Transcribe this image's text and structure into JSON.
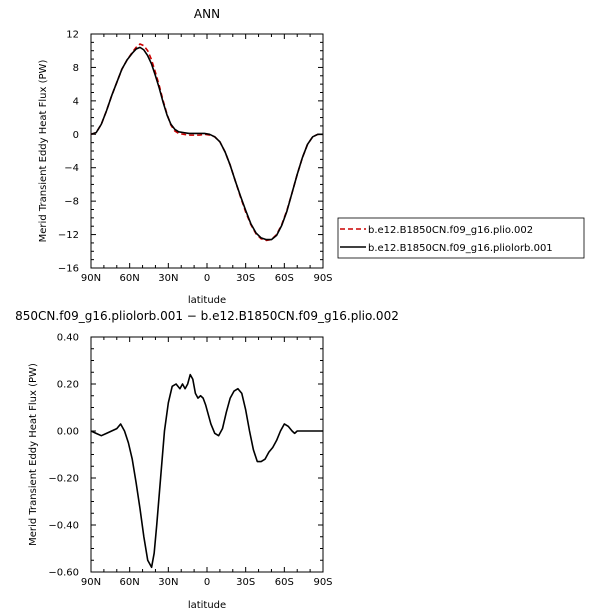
{
  "chart_data": [
    {
      "type": "line",
      "title": "ANN",
      "xlabel": "latitude",
      "ylabel": "Merid Transient Eddy Heat Flux (PW)",
      "xlim": [
        90,
        -90
      ],
      "ylim": [
        -16,
        12
      ],
      "x_ticks": [
        {
          "v": 90,
          "label": "90N"
        },
        {
          "v": 60,
          "label": "60N"
        },
        {
          "v": 30,
          "label": "30N"
        },
        {
          "v": 0,
          "label": "0"
        },
        {
          "v": -30,
          "label": "30S"
        },
        {
          "v": -60,
          "label": "60S"
        },
        {
          "v": -90,
          "label": "90S"
        }
      ],
      "y_ticks": [
        {
          "v": 12,
          "label": "12"
        },
        {
          "v": 8,
          "label": "8"
        },
        {
          "v": 4,
          "label": "4"
        },
        {
          "v": 0,
          "label": "0"
        },
        {
          "v": -4,
          "label": "−4"
        },
        {
          "v": -8,
          "label": "−8"
        },
        {
          "v": -12,
          "label": "−12"
        },
        {
          "v": -16,
          "label": "−16"
        }
      ],
      "series": [
        {
          "name": "b.e12.B1850CN.f09_g16.plio.002",
          "color": "#cc0000",
          "dash": "dashed",
          "x": [
            90,
            86,
            82,
            78,
            74,
            70,
            66,
            62,
            58,
            55,
            52,
            49,
            46,
            43,
            40,
            37,
            34,
            31,
            28,
            25,
            22,
            18,
            14,
            10,
            6,
            2,
            -2,
            -6,
            -10,
            -14,
            -18,
            -22,
            -26,
            -30,
            -34,
            -38,
            -42,
            -46,
            -50,
            -54,
            -58,
            -62,
            -66,
            -70,
            -74,
            -78,
            -82,
            -86,
            -90
          ],
          "y": [
            0,
            0.2,
            1.2,
            2.8,
            4.6,
            6.2,
            7.8,
            8.9,
            9.8,
            10.4,
            10.8,
            10.6,
            10.0,
            8.9,
            7.4,
            5.8,
            4.0,
            2.4,
            1.1,
            0.4,
            0.1,
            0.0,
            -0.1,
            -0.1,
            -0.1,
            0.0,
            -0.1,
            -0.3,
            -0.9,
            -2.1,
            -3.7,
            -5.6,
            -7.5,
            -9.3,
            -10.8,
            -11.9,
            -12.5,
            -12.7,
            -12.6,
            -12.0,
            -10.8,
            -9.1,
            -7.0,
            -4.8,
            -2.8,
            -1.2,
            -0.3,
            0.0,
            0.0
          ]
        },
        {
          "name": "b.e12.B1850CN.f09_g16.pliolorb.001",
          "color": "#000000",
          "dash": "solid",
          "x": [
            90,
            86,
            82,
            78,
            74,
            70,
            66,
            62,
            58,
            55,
            52,
            49,
            46,
            43,
            40,
            37,
            34,
            31,
            28,
            25,
            22,
            18,
            14,
            10,
            6,
            2,
            -2,
            -6,
            -10,
            -14,
            -18,
            -22,
            -26,
            -30,
            -34,
            -38,
            -42,
            -46,
            -50,
            -54,
            -58,
            -62,
            -66,
            -70,
            -74,
            -78,
            -82,
            -86,
            -90
          ],
          "y": [
            0,
            0.2,
            1.2,
            2.8,
            4.6,
            6.2,
            7.8,
            8.9,
            9.7,
            10.2,
            10.4,
            10.1,
            9.4,
            8.4,
            7.0,
            5.5,
            3.8,
            2.3,
            1.2,
            0.6,
            0.3,
            0.2,
            0.1,
            0.1,
            0.1,
            0.1,
            0.0,
            -0.3,
            -0.9,
            -2.1,
            -3.7,
            -5.6,
            -7.4,
            -9.1,
            -10.7,
            -11.8,
            -12.4,
            -12.6,
            -12.6,
            -12.1,
            -10.9,
            -9.2,
            -7.0,
            -4.8,
            -2.8,
            -1.2,
            -0.3,
            0.0,
            0.0
          ]
        }
      ],
      "legend": "right"
    },
    {
      "type": "line",
      "title": "850CN.f09_g16.pliolorb.001 − b.e12.B1850CN.f09_g16.plio.002",
      "xlabel": "latitude",
      "ylabel": "Merid Transient Eddy Heat Flux (PW)",
      "xlim": [
        90,
        -90
      ],
      "ylim": [
        -0.6,
        0.4
      ],
      "x_ticks": [
        {
          "v": 90,
          "label": "90N"
        },
        {
          "v": 60,
          "label": "60N"
        },
        {
          "v": 30,
          "label": "30N"
        },
        {
          "v": 0,
          "label": "0"
        },
        {
          "v": -30,
          "label": "30S"
        },
        {
          "v": -60,
          "label": "60S"
        },
        {
          "v": -90,
          "label": "90S"
        }
      ],
      "y_ticks": [
        {
          "v": 0.4,
          "label": "0.40"
        },
        {
          "v": 0.2,
          "label": "0.20"
        },
        {
          "v": 0.0,
          "label": "0.00"
        },
        {
          "v": -0.2,
          "label": "−0.20"
        },
        {
          "v": -0.4,
          "label": "−0.40"
        },
        {
          "v": -0.6,
          "label": "−0.60"
        }
      ],
      "series": [
        {
          "color": "#000000",
          "dash": "solid",
          "x": [
            90,
            86,
            82,
            78,
            74,
            70,
            67,
            64,
            61,
            58,
            55,
            52,
            49,
            46,
            43,
            41,
            39,
            36,
            33,
            30,
            27,
            24,
            21,
            19,
            17,
            15,
            13,
            11,
            9,
            7,
            5,
            3,
            1,
            -1,
            -3,
            -6,
            -9,
            -12,
            -15,
            -18,
            -21,
            -24,
            -27,
            -30,
            -33,
            -36,
            -39,
            -42,
            -45,
            -48,
            -51,
            -54,
            -57,
            -60,
            -63,
            -66,
            -68,
            -70,
            -73,
            -76,
            -80,
            -84,
            -87,
            -90
          ],
          "y": [
            0.0,
            -0.01,
            -0.02,
            -0.01,
            0.0,
            0.01,
            0.03,
            0.0,
            -0.05,
            -0.12,
            -0.22,
            -0.33,
            -0.45,
            -0.55,
            -0.58,
            -0.52,
            -0.4,
            -0.2,
            0.0,
            0.12,
            0.19,
            0.2,
            0.18,
            0.2,
            0.18,
            0.2,
            0.24,
            0.22,
            0.16,
            0.14,
            0.15,
            0.14,
            0.11,
            0.07,
            0.03,
            -0.01,
            -0.02,
            0.01,
            0.08,
            0.14,
            0.17,
            0.18,
            0.16,
            0.09,
            0.0,
            -0.08,
            -0.13,
            -0.13,
            -0.12,
            -0.09,
            -0.07,
            -0.04,
            0.0,
            0.03,
            0.02,
            0.0,
            -0.01,
            0.0,
            0.0,
            0.0,
            0.0,
            0.0,
            0.0,
            0.0
          ]
        }
      ]
    }
  ]
}
